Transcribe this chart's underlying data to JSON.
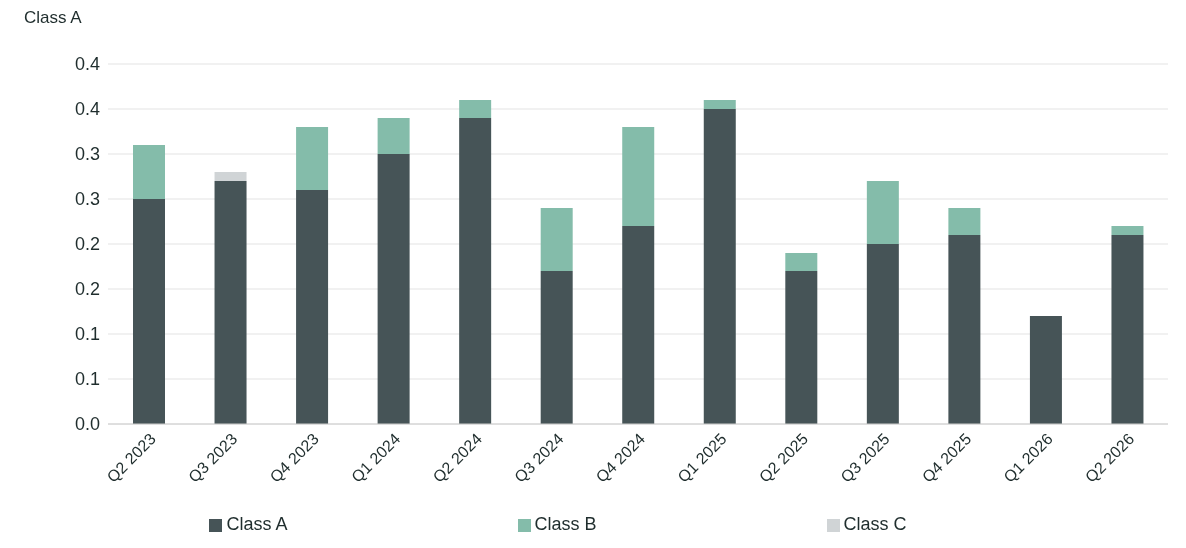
{
  "chart_data": {
    "type": "bar",
    "ylabel": "Class A",
    "stacked": true,
    "categories": [
      "Q2 2023",
      "Q3 2023",
      "Q4 2023",
      "Q1 2024",
      "Q2 2024",
      "Q3 2024",
      "Q4 2024",
      "Q1 2025",
      "Q2 2025",
      "Q3 2025",
      "Q4 2025",
      "Q1 2026",
      "Q2 2026"
    ],
    "series": [
      {
        "name": "Class A",
        "color": "#465457",
        "values": [
          0.25,
          0.27,
          0.26,
          0.3,
          0.34,
          0.17,
          0.22,
          0.35,
          0.17,
          0.2,
          0.21,
          0.12,
          0.21
        ]
      },
      {
        "name": "Class B",
        "color": "#84bcaa",
        "values": [
          0.06,
          null,
          0.07,
          0.04,
          0.02,
          0.07,
          0.11,
          0.01,
          0.02,
          0.07,
          0.03,
          null,
          0.01
        ]
      },
      {
        "name": "Class C",
        "color": "#d0d4d6",
        "values": [
          null,
          0.01,
          null,
          null,
          null,
          null,
          null,
          null,
          null,
          null,
          null,
          null,
          null
        ]
      }
    ],
    "ylim": [
      0,
      0.4
    ],
    "yticks": [
      {
        "value": 0,
        "label": "0.0"
      },
      {
        "value": 0.05,
        "label": "0.1"
      },
      {
        "value": 0.1,
        "label": "0.1"
      },
      {
        "value": 0.15,
        "label": "0.2"
      },
      {
        "value": 0.2,
        "label": "0.2"
      },
      {
        "value": 0.25,
        "label": "0.3"
      },
      {
        "value": 0.3,
        "label": "0.3"
      },
      {
        "value": 0.35,
        "label": "0.4"
      },
      {
        "value": 0.4,
        "label": "0.4"
      }
    ],
    "grid": "y",
    "legend": "bottom"
  }
}
